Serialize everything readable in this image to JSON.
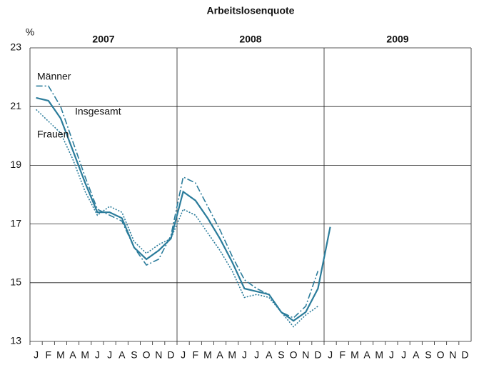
{
  "chart_data": {
    "type": "line",
    "title": "Arbeitslosenquote",
    "y_unit": "%",
    "years": [
      "2007",
      "2008",
      "2009"
    ],
    "categories": [
      "J",
      "F",
      "M",
      "A",
      "M",
      "J",
      "J",
      "A",
      "S",
      "O",
      "N",
      "D",
      "J",
      "F",
      "M",
      "A",
      "M",
      "J",
      "J",
      "A",
      "S",
      "O",
      "N",
      "D",
      "J",
      "F",
      "M",
      "A",
      "M",
      "J",
      "J",
      "A",
      "S",
      "O",
      "N",
      "D"
    ],
    "ylim": [
      13,
      23
    ],
    "yticks": [
      13,
      15,
      17,
      19,
      21,
      23
    ],
    "grid": true,
    "series": [
      {
        "name": "Männer",
        "color": "#2b7c9b",
        "style": "dashdot",
        "values": [
          21.7,
          21.7,
          21.0,
          19.8,
          18.6,
          17.5,
          17.3,
          17.1,
          16.2,
          15.6,
          15.8,
          16.6,
          18.6,
          18.4,
          17.6,
          16.8,
          15.9,
          15.1,
          14.8,
          14.6,
          14.0,
          13.8,
          14.2,
          15.4,
          null,
          null,
          null,
          null,
          null,
          null,
          null,
          null,
          null,
          null,
          null,
          null
        ]
      },
      {
        "name": "Insgesamt",
        "color": "#2b7c9b",
        "style": "solid",
        "values": [
          21.3,
          21.2,
          20.6,
          19.5,
          18.4,
          17.4,
          17.4,
          17.2,
          16.2,
          15.8,
          16.1,
          16.5,
          18.1,
          17.8,
          17.2,
          16.5,
          15.7,
          14.8,
          14.7,
          14.6,
          14.0,
          13.7,
          14.0,
          14.8,
          16.9,
          null,
          null,
          null,
          null,
          null,
          null,
          null,
          null,
          null,
          null,
          null
        ]
      },
      {
        "name": "Frauen",
        "color": "#2b7c9b",
        "style": "dotted",
        "values": [
          20.9,
          20.5,
          20.1,
          19.2,
          18.1,
          17.3,
          17.6,
          17.4,
          16.4,
          16.0,
          16.3,
          16.5,
          17.5,
          17.3,
          16.7,
          16.1,
          15.4,
          14.5,
          14.6,
          14.5,
          14.0,
          13.5,
          13.9,
          14.2,
          null,
          null,
          null,
          null,
          null,
          null,
          null,
          null,
          null,
          null,
          null,
          null
        ]
      }
    ]
  }
}
